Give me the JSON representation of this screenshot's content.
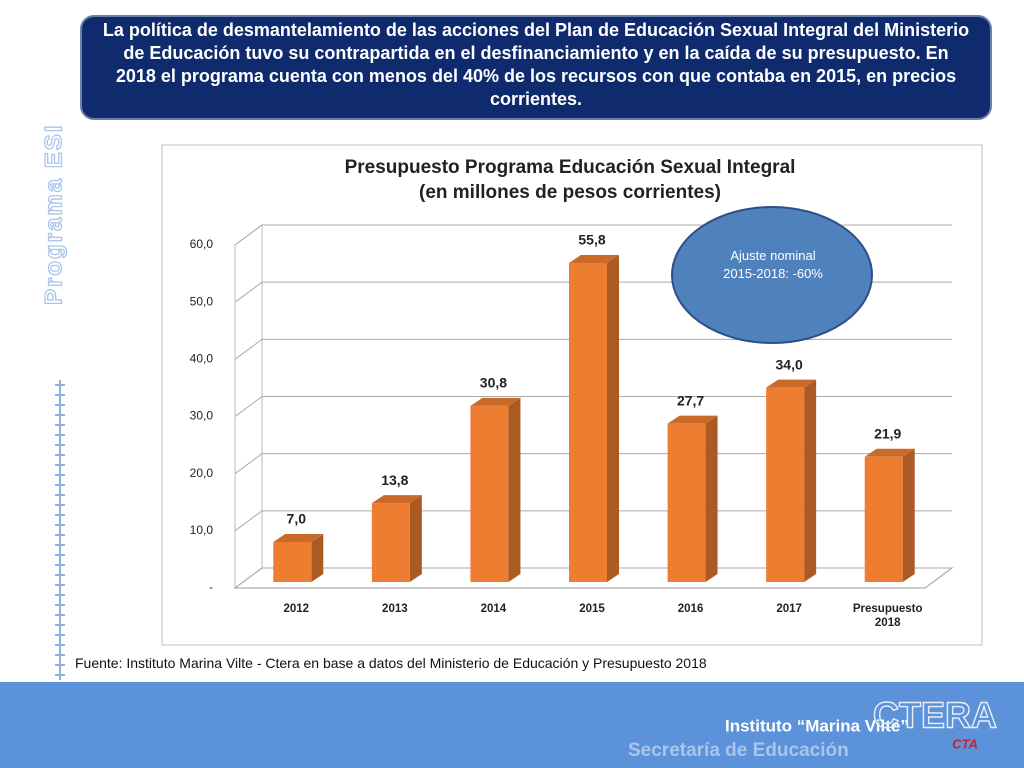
{
  "header": {
    "text": "La política de desmantelamiento de las acciones del Plan de Educación Sexual Integral del Ministerio de Educación tuvo su contrapartida en el desfinanciamiento y en la caída de su presupuesto. En 2018 el programa cuenta con menos del 40% de los recursos con que contaba en 2015, en precios corrientes."
  },
  "side_label": "Programa ESI",
  "chart_data": {
    "type": "bar",
    "title": "Presupuesto Programa Educación Sexual Integral",
    "subtitle": "(en millones de pesos corrientes)",
    "categories": [
      "2012",
      "2013",
      "2014",
      "2015",
      "2016",
      "2017",
      "Presupuesto 2018"
    ],
    "values": [
      7.0,
      13.8,
      30.8,
      55.8,
      27.7,
      34.0,
      21.9
    ],
    "value_labels": [
      "7,0",
      "13,8",
      "30,8",
      "55,8",
      "27,7",
      "34,0",
      "21,9"
    ],
    "color": "#ed7d31",
    "ylim": [
      0,
      60
    ],
    "yticks": [
      {
        "value": 0,
        "label": "-"
      },
      {
        "value": 10,
        "label": "10,0"
      },
      {
        "value": 20,
        "label": "20,0"
      },
      {
        "value": 30,
        "label": "30,0"
      },
      {
        "value": 40,
        "label": "40,0"
      },
      {
        "value": 50,
        "label": "50,0"
      },
      {
        "value": 60,
        "label": "60,0"
      }
    ],
    "grid": true,
    "annotation": "Ajuste nominal 2015-2018: -60%"
  },
  "source": "Fuente: Instituto Marina Vilte - Ctera en base a datos del Ministerio de Educación y Presupuesto 2018",
  "footer": {
    "institute": "Instituto “Marina Vilte”",
    "secretariat": "Secretaría de Educación",
    "logo": "CTERA",
    "logo2": "CTA"
  }
}
